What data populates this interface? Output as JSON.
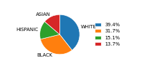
{
  "chart_data": {
    "type": "pie",
    "categories": [
      "WHITE",
      "BLACK",
      "HISPANIC",
      "ASIAN"
    ],
    "values": [
      39.4,
      31.7,
      15.1,
      13.7
    ],
    "value_labels": [
      "39.4%",
      "31.7%",
      "15.1%",
      "13.7%"
    ],
    "legend": "right"
  }
}
